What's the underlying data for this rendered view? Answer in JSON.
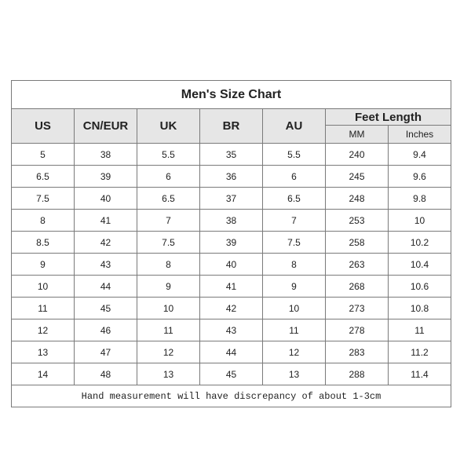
{
  "title": "Men's Size Chart",
  "headers": [
    "US",
    "CN/EUR",
    "UK",
    "BR",
    "AU"
  ],
  "feet_length": {
    "label": "Feet Length",
    "sub": [
      "MM",
      "Inches"
    ]
  },
  "rows": [
    [
      "5",
      "38",
      "5.5",
      "35",
      "5.5",
      "240",
      "9.4"
    ],
    [
      "6.5",
      "39",
      "6",
      "36",
      "6",
      "245",
      "9.6"
    ],
    [
      "7.5",
      "40",
      "6.5",
      "37",
      "6.5",
      "248",
      "9.8"
    ],
    [
      "8",
      "41",
      "7",
      "38",
      "7",
      "253",
      "10"
    ],
    [
      "8.5",
      "42",
      "7.5",
      "39",
      "7.5",
      "258",
      "10.2"
    ],
    [
      "9",
      "43",
      "8",
      "40",
      "8",
      "263",
      "10.4"
    ],
    [
      "10",
      "44",
      "9",
      "41",
      "9",
      "268",
      "10.6"
    ],
    [
      "11",
      "45",
      "10",
      "42",
      "10",
      "273",
      "10.8"
    ],
    [
      "12",
      "46",
      "11",
      "43",
      "11",
      "278",
      "11"
    ],
    [
      "13",
      "47",
      "12",
      "44",
      "12",
      "283",
      "11.2"
    ],
    [
      "14",
      "48",
      "13",
      "45",
      "13",
      "288",
      "11.4"
    ]
  ],
  "footer": "Hand measurement will have discrepancy of about 1-3cm"
}
